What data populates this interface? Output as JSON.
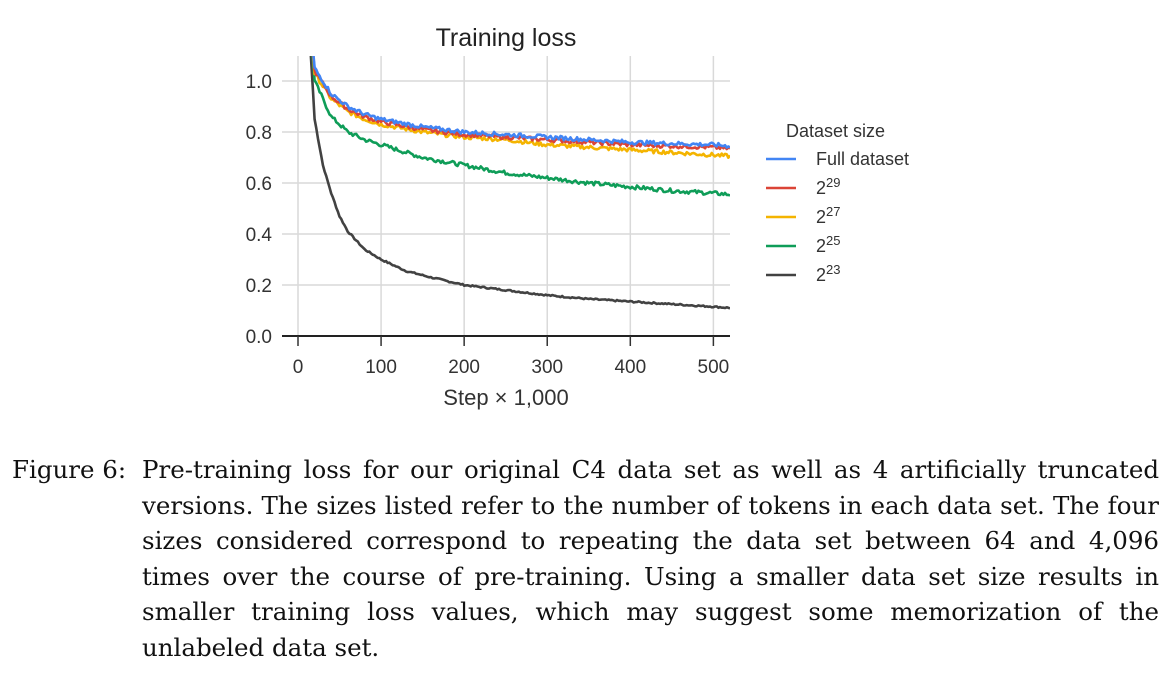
{
  "chart_data": {
    "type": "line",
    "title": "Training loss",
    "xlabel": "Step × 1,000",
    "ylabel": "",
    "xlim": [
      0,
      520
    ],
    "ylim": [
      0,
      1.0
    ],
    "x_ticks": [
      0,
      100,
      200,
      300,
      400,
      500
    ],
    "y_ticks": [
      0.0,
      0.2,
      0.4,
      0.6,
      0.8,
      1.0
    ],
    "grid": "vertical",
    "legend": {
      "title": "Dataset size",
      "placement": "right"
    },
    "series": [
      {
        "key": "full",
        "name": "Full dataset",
        "sup": "",
        "color": "#4285F4",
        "noise": 0.008,
        "x": [
          10,
          20,
          40,
          60,
          80,
          100,
          150,
          200,
          250,
          300,
          350,
          400,
          450,
          500,
          520
        ],
        "y": [
          1.4,
          1.05,
          0.95,
          0.9,
          0.87,
          0.85,
          0.82,
          0.8,
          0.79,
          0.78,
          0.77,
          0.76,
          0.755,
          0.75,
          0.745
        ]
      },
      {
        "key": "s29",
        "name": "2",
        "sup": "29",
        "color": "#DB4437",
        "noise": 0.008,
        "x": [
          10,
          20,
          40,
          60,
          80,
          100,
          150,
          200,
          250,
          300,
          350,
          400,
          450,
          500,
          520
        ],
        "y": [
          1.4,
          1.04,
          0.94,
          0.89,
          0.86,
          0.84,
          0.81,
          0.79,
          0.78,
          0.77,
          0.76,
          0.75,
          0.745,
          0.74,
          0.735
        ]
      },
      {
        "key": "s27",
        "name": "2",
        "sup": "27",
        "color": "#F4B400",
        "noise": 0.008,
        "x": [
          10,
          20,
          40,
          60,
          80,
          100,
          150,
          200,
          250,
          300,
          350,
          400,
          450,
          500,
          520
        ],
        "y": [
          1.4,
          1.03,
          0.93,
          0.88,
          0.85,
          0.83,
          0.8,
          0.78,
          0.77,
          0.75,
          0.74,
          0.73,
          0.72,
          0.71,
          0.705
        ]
      },
      {
        "key": "s25",
        "name": "2",
        "sup": "25",
        "color": "#0F9D58",
        "noise": 0.008,
        "x": [
          10,
          20,
          40,
          60,
          80,
          100,
          150,
          200,
          250,
          300,
          350,
          400,
          450,
          500,
          520
        ],
        "y": [
          1.4,
          1.0,
          0.86,
          0.8,
          0.77,
          0.75,
          0.7,
          0.67,
          0.64,
          0.62,
          0.6,
          0.585,
          0.57,
          0.56,
          0.555
        ]
      },
      {
        "key": "s23",
        "name": "2",
        "sup": "23",
        "color": "#424242",
        "noise": 0.003,
        "x": [
          10,
          20,
          30,
          40,
          50,
          60,
          80,
          100,
          130,
          160,
          200,
          250,
          300,
          350,
          400,
          450,
          500,
          520
        ],
        "y": [
          1.4,
          0.85,
          0.67,
          0.56,
          0.47,
          0.41,
          0.34,
          0.3,
          0.255,
          0.23,
          0.2,
          0.18,
          0.16,
          0.145,
          0.135,
          0.125,
          0.115,
          0.11
        ]
      }
    ]
  },
  "caption": {
    "label": "Figure 6:",
    "text": "Pre-training loss for our original C4 data set as well as 4 artificially truncated versions. The sizes listed refer to the number of tokens in each data set. The four sizes considered correspond to repeating the data set between 64 and 4,096 times over the course of pre-training. Using a smaller data set size results in smaller training loss values, which may suggest some memorization of the unlabeled data set."
  }
}
